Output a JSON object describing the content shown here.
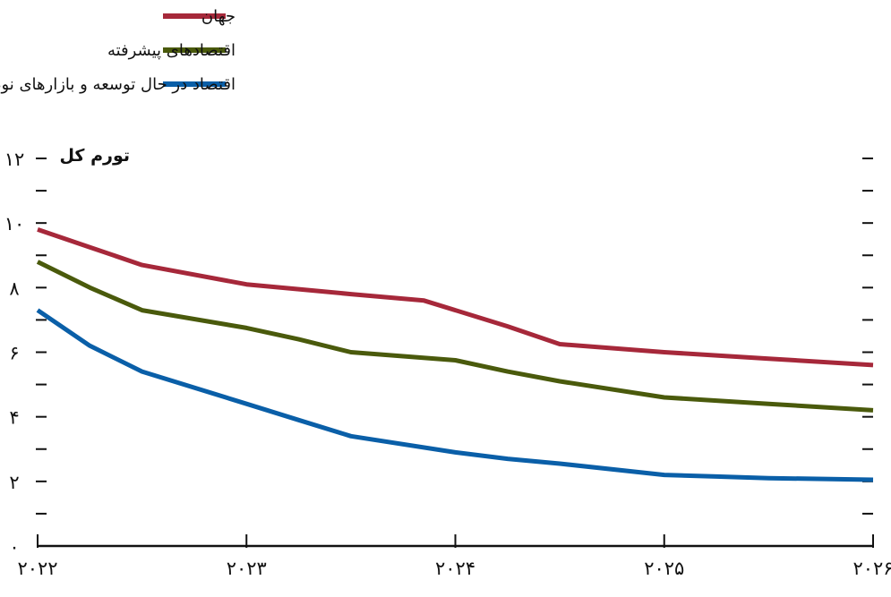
{
  "chart_data": {
    "type": "line",
    "title": "",
    "ylabel": "تورم کل",
    "xlabel": "",
    "x": [
      2022,
      2023,
      2024,
      2025,
      2026
    ],
    "x_tick_labels": [
      "۲۰۲۲",
      "۲۰۲۳",
      "۲۰۲۴",
      "۲۰۲۵",
      "۲۰۲۶"
    ],
    "ylim": [
      0,
      12
    ],
    "y_ticks": [
      0,
      1,
      2,
      3,
      4,
      5,
      6,
      7,
      8,
      9,
      10,
      11,
      12
    ],
    "y_tick_labels": {
      "0": "۰",
      "2": "۲",
      "4": "۴",
      "6": "۶",
      "8": "۸",
      "10": "۱۰",
      "12": "۱۲"
    },
    "grid": false,
    "legend_position": "top",
    "series": [
      {
        "name": "جهان",
        "color": "#a6283a",
        "points": [
          [
            2022,
            9.8
          ],
          [
            2022.25,
            9.25
          ],
          [
            2022.5,
            8.7
          ],
          [
            2023.0,
            8.1
          ],
          [
            2023.25,
            7.95
          ],
          [
            2023.5,
            7.8
          ],
          [
            2023.85,
            7.6
          ],
          [
            2024.0,
            7.3
          ],
          [
            2024.25,
            6.8
          ],
          [
            2024.5,
            6.25
          ],
          [
            2025.0,
            6.0
          ],
          [
            2025.25,
            5.9
          ],
          [
            2025.5,
            5.8
          ],
          [
            2026.0,
            5.6
          ]
        ]
      },
      {
        "name": "اقتصادهای پیشرفته",
        "color": "#4a5a0c",
        "points": [
          [
            2022,
            8.8
          ],
          [
            2022.25,
            8.0
          ],
          [
            2022.5,
            7.3
          ],
          [
            2023.0,
            6.75
          ],
          [
            2023.25,
            6.4
          ],
          [
            2023.5,
            6.0
          ],
          [
            2024.0,
            5.75
          ],
          [
            2024.25,
            5.4
          ],
          [
            2024.5,
            5.1
          ],
          [
            2025.0,
            4.6
          ],
          [
            2025.25,
            4.5
          ],
          [
            2025.5,
            4.4
          ],
          [
            2026.0,
            4.2
          ]
        ]
      },
      {
        "name": "اقتصاد در حال توسعه و بازارهای نوظهور",
        "color": "#0a5fa8",
        "points": [
          [
            2022,
            7.3
          ],
          [
            2022.25,
            6.2
          ],
          [
            2022.5,
            5.4
          ],
          [
            2023.0,
            4.4
          ],
          [
            2023.25,
            3.9
          ],
          [
            2023.5,
            3.4
          ],
          [
            2024.0,
            2.9
          ],
          [
            2024.25,
            2.7
          ],
          [
            2024.5,
            2.55
          ],
          [
            2025.0,
            2.2
          ],
          [
            2025.25,
            2.15
          ],
          [
            2025.5,
            2.1
          ],
          [
            2026.0,
            2.05
          ]
        ]
      }
    ]
  }
}
